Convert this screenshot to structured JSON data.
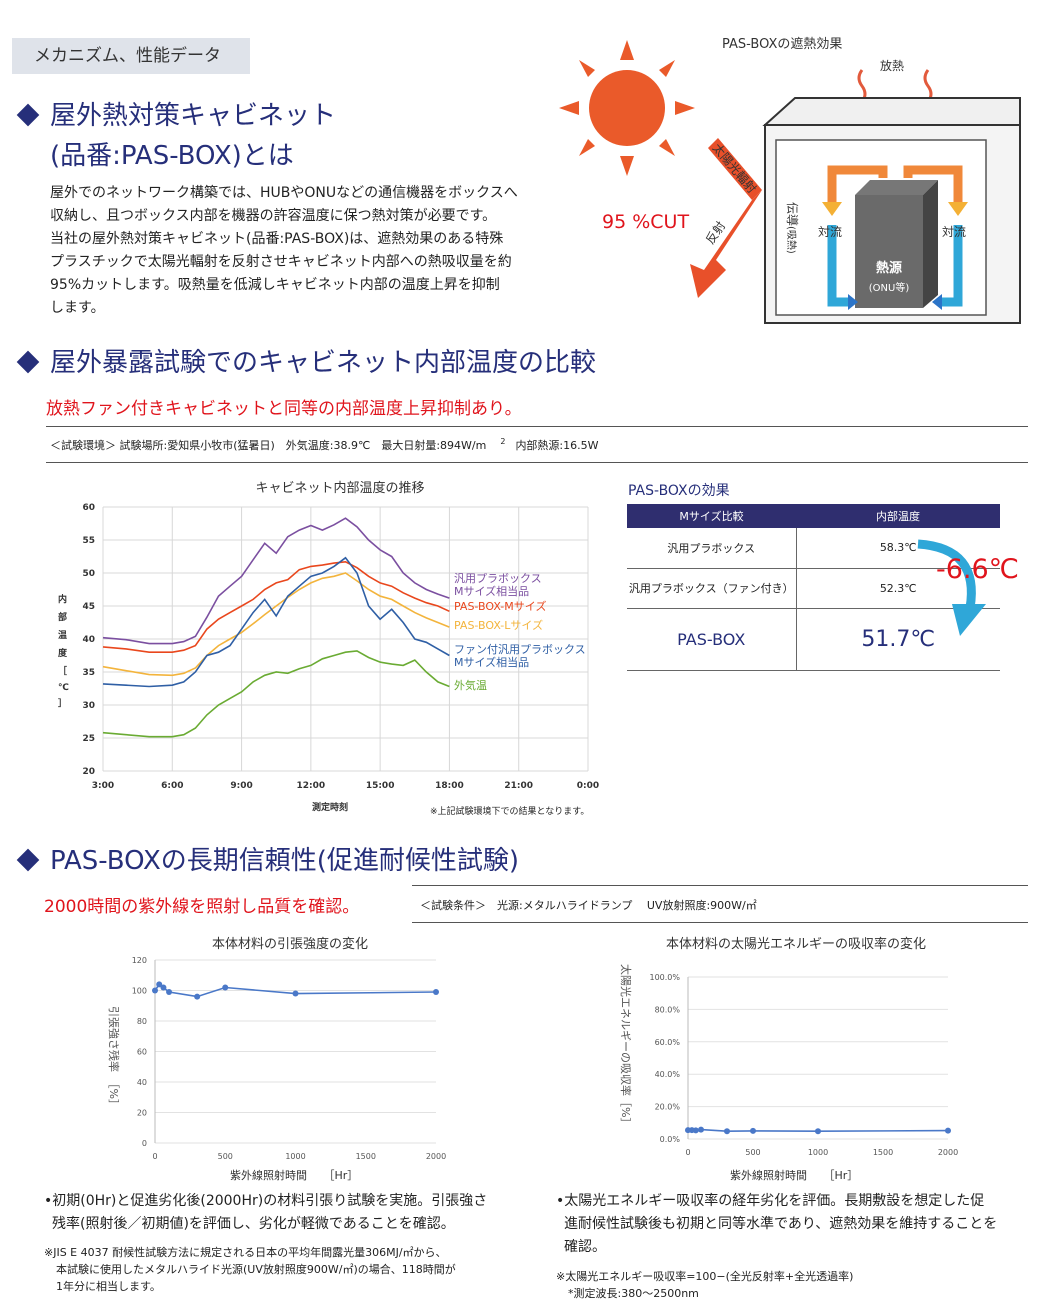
{
  "section_tag": "メカニズム、性能データ",
  "sec1": {
    "title_line1": "屋外熱対策キャビネット",
    "title_line2": "(品番:PAS-BOX)とは",
    "body": [
      "屋外でのネットワーク構築では、HUBやONUなどの通信機器をボックスへ",
      "収納し、且つボックス内部を機器の許容温度に保つ熱対策が必要です。",
      "当社の屋外熱対策キャビネット(品番:PAS-BOX)は、遮熱効果のある特殊",
      "プラスチックで太陽光輻射を反射させキャビネット内部への熱吸収量を約",
      "95%カットします。吸熱量を低減しキャビネット内部の温度上昇を抑制",
      "します。"
    ]
  },
  "diagram": {
    "title": "PAS-BOXの遮熱効果",
    "heat_release": "放熱",
    "conduction": "伝導",
    "solar": "太陽光輻射",
    "reflect": "反射",
    "cut": "95 %CUT",
    "inner_cond": "伝導",
    "absorb": "(吸熱)",
    "convection_l": "対流",
    "convection_r": "対流",
    "source": "熱源",
    "source_sub": "(ONU等)"
  },
  "sec2": {
    "title": "屋外暴露試験でのキャビネット内部温度の比較",
    "subtitle": "放熱ファン付きキャビネットと同等の内部温度上昇抑制あり。",
    "env": "＜試験環境＞ 試験場所:愛知県小牧市(猛暑日)　外気温度:38.9℃　最大日射量:894W/m",
    "env_sup": "2",
    "env_tail": "内部熱源:16.5W",
    "note": "※上記試験環境下での結果となります。"
  },
  "effect": {
    "title": "PAS-BOXの効果",
    "headers": [
      "Mサイズ比較",
      "内部温度"
    ],
    "rows": [
      {
        "name": "汎用プラボックス",
        "temp": "58.3℃"
      },
      {
        "name": "汎用プラボックス（ファン付き）",
        "temp": "52.3℃"
      },
      {
        "name": "PAS-BOX",
        "temp": "51.7℃"
      }
    ],
    "diff": "-6.6℃"
  },
  "sec3": {
    "title": "PAS-BOXの長期信頼性(促進耐候性試験)",
    "subtitle": "2000時間の紫外線を照射し品質を確認。",
    "cond": "＜試験条件＞　光源:メタルハライドランプ　 UV放射照度:900W/㎡",
    "left_bullet": [
      "•初期(0Hr)と促進劣化後(2000Hr)の材料引張り試験を実施。引張強さ",
      "残率(照射後／初期値)を評価し、劣化が軽微であることを確認。"
    ],
    "left_note": [
      "※JIS E 4037 耐候性試験方法に規定される日本の平均年間露光量306MJ/㎡から、",
      "本試験に使用したメタルハライド光源(UV放射照度900W/㎡)の場合、118時間が",
      "1年分に相当します。"
    ],
    "right_bullet": [
      "•太陽光エネルギー吸収率の経年劣化を評価。長期敷設を想定した促",
      "進耐候性試験後も初期と同等水準であり、遮熱効果を維持することを",
      "確認。"
    ],
    "right_note": [
      "※太陽光エネルギー吸収率=100−(全光反射率+全光透過率)",
      "*測定波長:380〜2500nm"
    ]
  },
  "chart_data": [
    {
      "type": "line",
      "title": "キャビネット内部温度の推移",
      "xlabel": "測定時刻",
      "ylabel": "内部温度［℃］",
      "x_ticks": [
        "3:00",
        "6:00",
        "9:00",
        "12:00",
        "15:00",
        "18:00",
        "21:00",
        "0:00"
      ],
      "xlim": [
        3,
        24
      ],
      "ylim": [
        20,
        60
      ],
      "y_ticks": [
        20,
        25,
        30,
        35,
        40,
        45,
        50,
        55,
        60
      ],
      "grid": true,
      "x": [
        3,
        4,
        5,
        6,
        6.5,
        7,
        7.5,
        8,
        8.5,
        9,
        9.5,
        10,
        10.5,
        11,
        11.5,
        12,
        12.5,
        13,
        13.5,
        14,
        14.5,
        15,
        15.5,
        16,
        16.5,
        17,
        17.5,
        18
      ],
      "series": [
        {
          "name": "汎用プラボックス Mサイズ相当品",
          "color": "#7b4fa0",
          "values": [
            40.2,
            39.9,
            39.3,
            39.3,
            39.6,
            40.4,
            43.3,
            46.5,
            48,
            49.5,
            52,
            54.5,
            53,
            55.5,
            56.5,
            57.2,
            56.5,
            57.3,
            58.3,
            57,
            55,
            53.5,
            52.5,
            50,
            48.5,
            47.5,
            46.8,
            46.2
          ]
        },
        {
          "name": "PAS-BOX-Mサイズ",
          "color": "#e9471d",
          "values": [
            38.8,
            38.5,
            38,
            38,
            38.3,
            39,
            41.5,
            43,
            44,
            45,
            46,
            47.5,
            48.5,
            49,
            50.5,
            51,
            51.2,
            51.5,
            51.7,
            50.8,
            49.5,
            48.5,
            48,
            47,
            46.2,
            45.5,
            45,
            44.2
          ]
        },
        {
          "name": "PAS-BOX-Lサイズ",
          "color": "#f3b43c",
          "values": [
            35.8,
            35.2,
            34.6,
            34.5,
            34.8,
            35.6,
            37.5,
            39,
            40,
            41,
            42.3,
            43.7,
            45,
            46.3,
            47.5,
            48.5,
            49.2,
            49.5,
            50,
            48.8,
            47.5,
            46.5,
            46,
            45,
            44,
            43.2,
            42.5,
            41.8
          ]
        },
        {
          "name": "ファン付汎用プラボックス Mサイズ相当品",
          "color": "#2f5fa5",
          "values": [
            33.2,
            33,
            32.8,
            33,
            33.5,
            35,
            37.5,
            38,
            39,
            41.5,
            44,
            46,
            43.5,
            46.5,
            48,
            49.5,
            50,
            51,
            52.3,
            50,
            45,
            43,
            44.5,
            42.5,
            40,
            39.5,
            38.5,
            37.5
          ]
        },
        {
          "name": "外気温",
          "color": "#6aab33",
          "values": [
            25.8,
            25.5,
            25.2,
            25.2,
            25.5,
            26.5,
            28.5,
            30,
            31,
            32,
            33.5,
            34.5,
            35,
            34.8,
            35.5,
            36,
            37,
            37.5,
            38,
            38.2,
            37.2,
            36.5,
            36.2,
            36,
            36.8,
            35,
            33.5,
            32.8
          ]
        }
      ]
    },
    {
      "type": "line",
      "title": "本体材料の引張強度の変化",
      "xlabel": "紫外線照射時間　　［Hr］",
      "ylabel": "引張強さ残率　［%］",
      "xlim": [
        0,
        2000
      ],
      "ylim": [
        0,
        120
      ],
      "x_ticks": [
        0,
        500,
        1000,
        1500,
        2000
      ],
      "y_ticks": [
        0,
        20,
        40,
        60,
        80,
        100,
        120
      ],
      "x": [
        0,
        30,
        60,
        100,
        300,
        500,
        1000,
        2000
      ],
      "series": [
        {
          "color": "#4a78c8",
          "values": [
            100,
            104,
            102,
            99,
            96,
            102,
            98,
            99
          ]
        }
      ]
    },
    {
      "type": "line",
      "title": "本体材料の太陽光エネルギーの吸収率の変化",
      "xlabel": "紫外線照射時間　　［Hr］",
      "ylabel": "太陽光エネルギーの吸収率［%］",
      "xlim": [
        0,
        2000
      ],
      "ylim": [
        0,
        100
      ],
      "x_ticks": [
        0,
        500,
        1000,
        1500,
        2000
      ],
      "y_ticks": [
        "0.0%",
        "20.0%",
        "40.0%",
        "60.0%",
        "80.0%",
        "100.0%"
      ],
      "x": [
        0,
        30,
        60,
        100,
        300,
        500,
        1000,
        2000
      ],
      "series": [
        {
          "color": "#4a78c8",
          "values": [
            5.5,
            5.5,
            5.3,
            5.8,
            4.8,
            5.0,
            4.8,
            5.2
          ]
        }
      ]
    }
  ]
}
